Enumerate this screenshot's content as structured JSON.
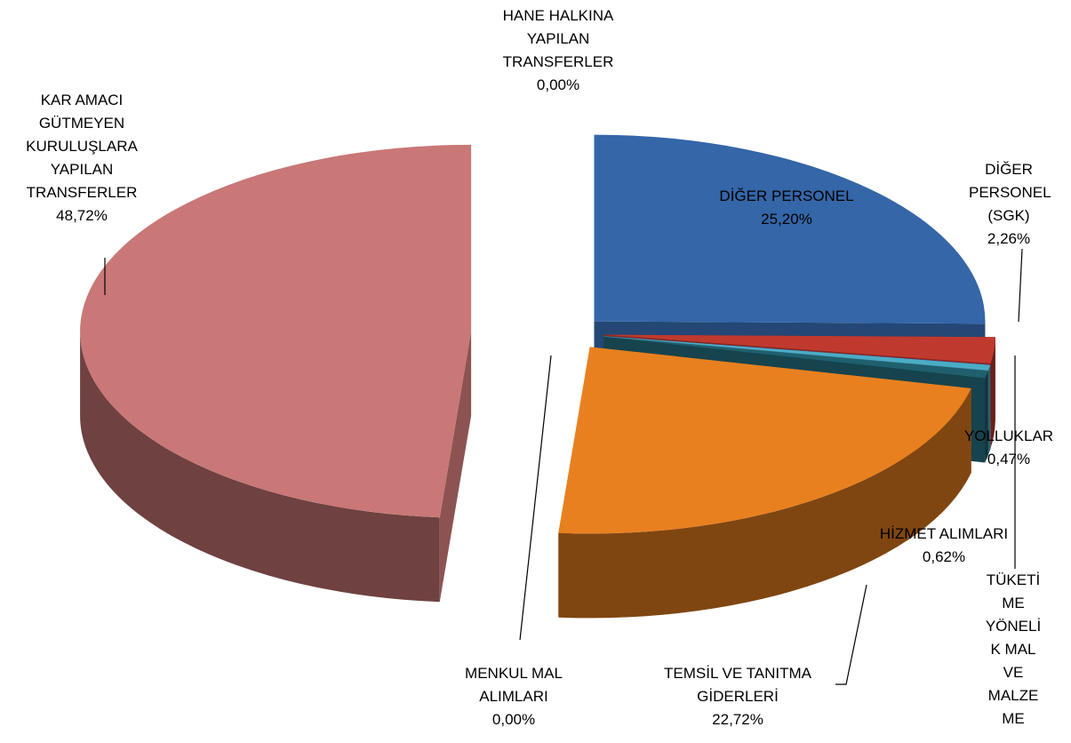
{
  "chart_data": {
    "type": "pie3d",
    "categories": [
      "DİĞER PERSONEL",
      "DİĞER PERSONEL (SGK)",
      "TÜKETİME YÖNELİK MAL VE MALZEME",
      "YOLLUKLAR",
      "HİZMET ALIMLARI",
      "TEMSİL VE TANITMA GİDERLERİ",
      "MENKUL MAL ALIMLARI",
      "KAR AMACI GÜTMEYEN KURULUŞLARA YAPILAN TRANSFERLER",
      "HANE HALKINA YAPILAN TRANSFERLER"
    ],
    "values": [
      25.2,
      2.26,
      0.01,
      0.47,
      0.62,
      22.72,
      0.0,
      48.72,
      0.0
    ],
    "value_labels": [
      "25,20%",
      "2,26%",
      null,
      "0,47%",
      "0,62%",
      "22,72%",
      "0,00%",
      "48,72%",
      "0,00%"
    ],
    "colors": [
      "#3466a8",
      "#c0392f",
      "#7b4f92",
      "#4bacc6",
      "#1f5f6e",
      "#e8801f",
      "#4a74b0",
      "#c97777",
      "#8aa0c8"
    ]
  }
}
